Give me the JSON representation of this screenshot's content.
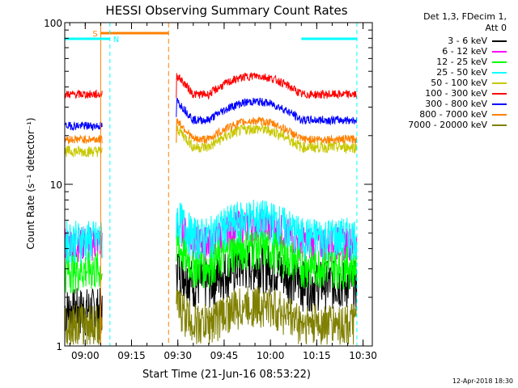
{
  "chart_data": {
    "type": "line",
    "title": "HESSI Observing Summary Count Rates",
    "xlabel": "Start Time (21-Jun-16 08:53:22)",
    "ylabel": "Count Rate (s⁻¹ detector⁻¹)",
    "x_range_minutes": [
      "08:53",
      "10:33"
    ],
    "ylim": [
      1,
      100
    ],
    "yscale": "log",
    "x_ticks": [
      "09:00",
      "09:15",
      "09:30",
      "09:45",
      "10:00",
      "10:15",
      "10:30"
    ],
    "y_ticks": [
      "1",
      "10",
      "100"
    ],
    "legend_header": [
      "Det 1,3, FDecim 1,",
      "Att 0"
    ],
    "series": [
      {
        "name": "3 - 6 keV",
        "color": "#000000",
        "level_pre": 1.7,
        "level_post": 2.5,
        "noise": 0.35
      },
      {
        "name": "6 - 12 keV",
        "color": "#ff00ff",
        "level_pre": 4.4,
        "level_post": 4.4,
        "noise": 0.25
      },
      {
        "name": "12 - 25 keV",
        "color": "#00ff00",
        "level_pre": 3.0,
        "level_post": 3.2,
        "noise": 0.3
      },
      {
        "name": "25 - 50 keV",
        "color": "#00ffff",
        "level_pre": 4.6,
        "level_post": 4.8,
        "noise": 0.3
      },
      {
        "name": "50 - 100 keV",
        "color": "#c8c800",
        "level_pre": 16,
        "level_post": 17,
        "noise": 0.08
      },
      {
        "name": "100 - 300 keV",
        "color": "#ff0000",
        "level_pre": 36,
        "level_post": 36,
        "noise": 0.06
      },
      {
        "name": "300 - 800 keV",
        "color": "#0000ff",
        "level_pre": 23,
        "level_post": 25,
        "noise": 0.06
      },
      {
        "name": "800 - 7000 keV",
        "color": "#ff8000",
        "level_pre": 19,
        "level_post": 19,
        "noise": 0.06
      },
      {
        "name": "7000 - 20000 keV",
        "color": "#808000",
        "level_pre": 1.4,
        "level_post": 1.4,
        "noise": 0.3
      }
    ],
    "flags": [
      {
        "label": "S",
        "color": "#ff8000",
        "start": "09:05",
        "end": "09:27"
      },
      {
        "label": "N",
        "color": "#00ffff",
        "start": "08:53",
        "end": "09:08"
      },
      {
        "label": "",
        "color": "#00ffff",
        "start": "10:10",
        "end": "10:28"
      }
    ]
  },
  "footer": "12-Apr-2018 18:30"
}
